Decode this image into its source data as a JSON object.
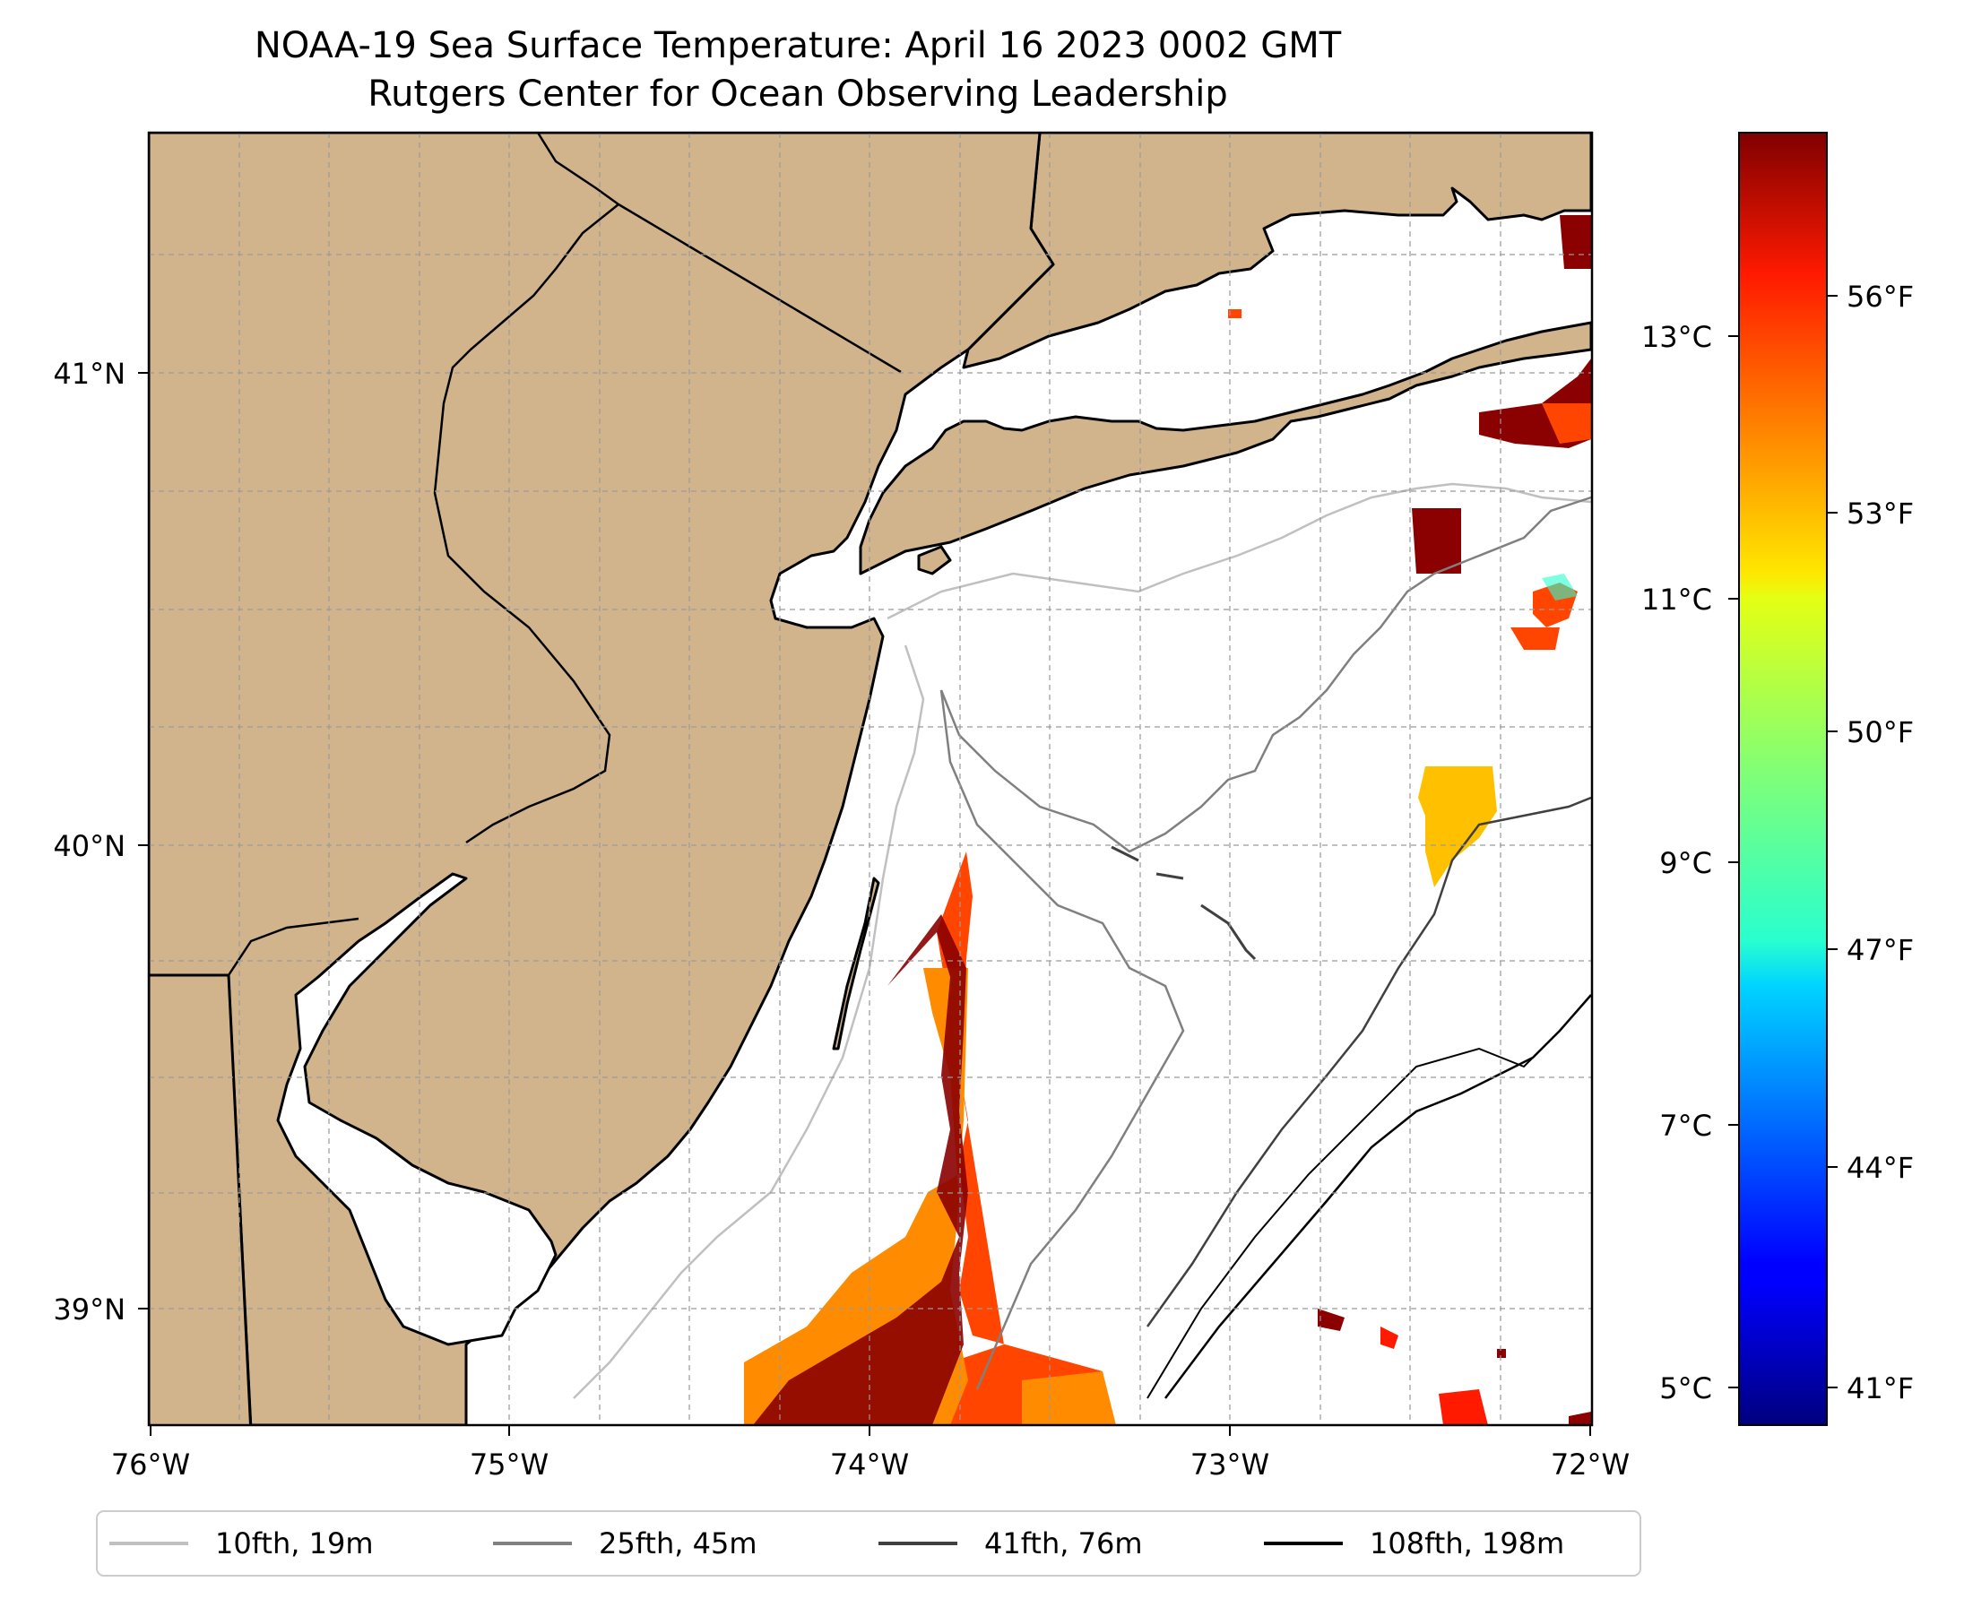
{
  "title": {
    "line1": "NOAA-19 Sea Surface Temperature: April 16 2023 0002 GMT",
    "line2": "Rutgers Center for Ocean Observing Leadership"
  },
  "map": {
    "lon_range": [
      -76.0,
      -72.0
    ],
    "lat_range": [
      38.75,
      41.55
    ],
    "lon_ticks": [
      {
        "value": -76,
        "label": "76°W"
      },
      {
        "value": -75,
        "label": "75°W"
      },
      {
        "value": -74,
        "label": "74°W"
      },
      {
        "value": -73,
        "label": "73°W"
      },
      {
        "value": -72,
        "label": "72°W"
      }
    ],
    "lat_ticks": [
      {
        "value": 41,
        "label": "41°N"
      },
      {
        "value": 40,
        "label": "40°N"
      },
      {
        "value": 39,
        "label": "39°N"
      }
    ],
    "grid": true,
    "land_color": "#d2b48c"
  },
  "colorbar": {
    "colormap": "jet",
    "celsius_ticks": [
      {
        "value": 5,
        "label": "5°C"
      },
      {
        "value": 7,
        "label": "7°C"
      },
      {
        "value": 9,
        "label": "9°C"
      },
      {
        "value": 11,
        "label": "11°C"
      },
      {
        "value": 13,
        "label": "13°C"
      }
    ],
    "fahrenheit_ticks": [
      {
        "value": 41,
        "label": "41°F"
      },
      {
        "value": 44,
        "label": "44°F"
      },
      {
        "value": 47,
        "label": "47°F"
      },
      {
        "value": 50,
        "label": "50°F"
      },
      {
        "value": 53,
        "label": "53°F"
      },
      {
        "value": 56,
        "label": "56°F"
      }
    ]
  },
  "legend": {
    "items": [
      {
        "label": "10fth, 19m",
        "color": "#c0c0c0"
      },
      {
        "label": "25fth, 45m",
        "color": "#808080"
      },
      {
        "label": "41fth, 76m",
        "color": "#404040"
      },
      {
        "label": "108fth, 198m",
        "color": "#000000"
      }
    ]
  }
}
